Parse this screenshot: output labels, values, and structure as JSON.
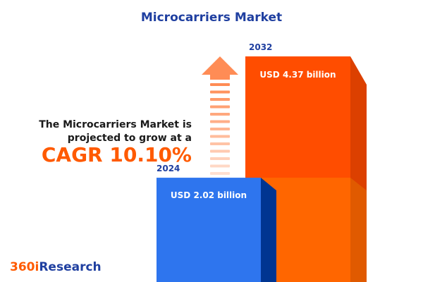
{
  "title": "Microcarriers Market",
  "description_line1": "The Microcarriers Market is",
  "description_line2": "projected to grow at a",
  "cagr_text": "CAGR 10.10%",
  "logo": {
    "part1": "360i",
    "part2": "Research"
  },
  "colors": {
    "title": "#1f3fa0",
    "accent": "#ff5a00",
    "bar_2024": "#2e75ee",
    "bar_2032": "#ff4d00"
  },
  "icons": [
    "up-arrow-icon"
  ],
  "chart_data": {
    "type": "bar",
    "categories": [
      "2024",
      "2032"
    ],
    "values": [
      2.02,
      4.37
    ],
    "value_labels": [
      "USD 2.02 billion",
      "USD 4.37 billion"
    ],
    "unit": "USD billion",
    "cagr": 10.1
  }
}
